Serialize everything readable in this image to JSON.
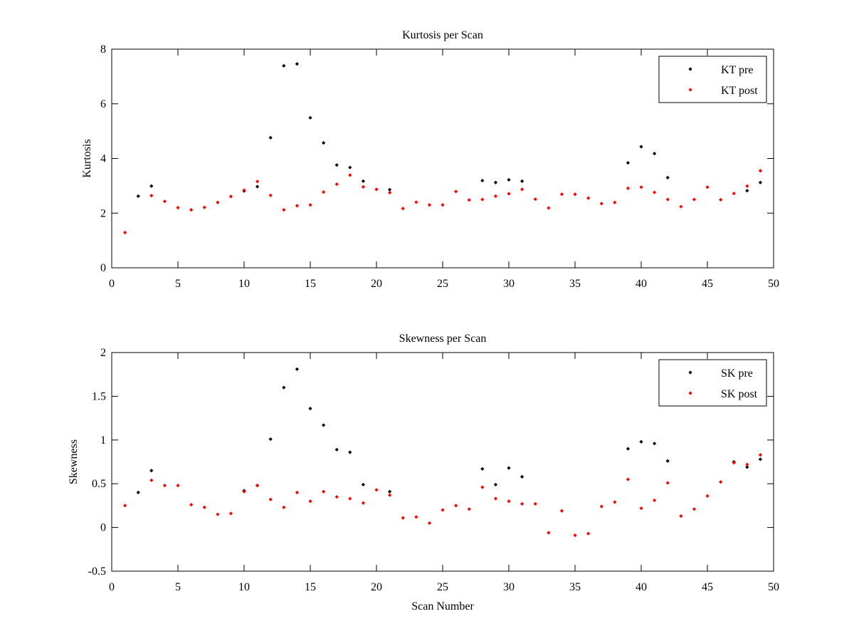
{
  "chart_data": [
    {
      "type": "scatter",
      "title": "Kurtosis per Scan",
      "xlabel": "",
      "ylabel": "Kurtosis",
      "xlim": [
        0,
        50
      ],
      "ylim": [
        0,
        8
      ],
      "xticks": [
        "0",
        "5",
        "10",
        "15",
        "20",
        "25",
        "30",
        "35",
        "40",
        "45",
        "50"
      ],
      "yticks": [
        "0",
        "2",
        "4",
        "6",
        "8"
      ],
      "grid": false,
      "legend_position": "top-right",
      "series": [
        {
          "name": "KT pre",
          "color": "#000000",
          "x": [
            2,
            3,
            10,
            11,
            12,
            13,
            14,
            15,
            16,
            17,
            18,
            19,
            21,
            28,
            29,
            30,
            31,
            39,
            40,
            41,
            42,
            48,
            49
          ],
          "y": [
            2.62,
            2.99,
            2.81,
            2.97,
            4.76,
            7.39,
            7.46,
            5.49,
            4.57,
            3.76,
            3.67,
            3.17,
            2.86,
            3.19,
            3.12,
            3.22,
            3.17,
            3.84,
            4.43,
            4.18,
            3.3,
            2.82,
            3.12
          ]
        },
        {
          "name": "KT post",
          "color": "#ff0000",
          "x": [
            1,
            3,
            4,
            5,
            6,
            7,
            8,
            9,
            10,
            11,
            12,
            13,
            14,
            15,
            16,
            17,
            18,
            19,
            20,
            21,
            22,
            23,
            24,
            25,
            26,
            27,
            28,
            29,
            30,
            31,
            32,
            33,
            34,
            35,
            36,
            37,
            38,
            39,
            40,
            41,
            42,
            43,
            44,
            45,
            46,
            47,
            48,
            49
          ],
          "y": [
            1.29,
            2.64,
            2.43,
            2.2,
            2.12,
            2.21,
            2.39,
            2.61,
            2.84,
            3.16,
            2.65,
            2.12,
            2.27,
            2.3,
            2.77,
            3.06,
            3.39,
            2.96,
            2.87,
            2.75,
            2.17,
            2.4,
            2.3,
            2.3,
            2.79,
            2.48,
            2.5,
            2.62,
            2.71,
            2.87,
            2.51,
            2.19,
            2.69,
            2.69,
            2.55,
            2.35,
            2.39,
            2.91,
            2.95,
            2.76,
            2.5,
            2.24,
            2.5,
            2.95,
            2.49,
            2.72,
            2.99,
            3.55
          ]
        }
      ]
    },
    {
      "type": "scatter",
      "title": "Skewness per Scan",
      "xlabel": "Scan Number",
      "ylabel": "Skewness",
      "xlim": [
        0,
        50
      ],
      "ylim": [
        -0.5,
        2
      ],
      "xticks": [
        "0",
        "5",
        "10",
        "15",
        "20",
        "25",
        "30",
        "35",
        "40",
        "45",
        "50"
      ],
      "yticks": [
        "-0.5",
        "0",
        "0.5",
        "1",
        "1.5",
        "2"
      ],
      "grid": false,
      "legend_position": "top-right",
      "series": [
        {
          "name": "SK pre",
          "color": "#000000",
          "x": [
            2,
            3,
            10,
            11,
            12,
            13,
            14,
            15,
            16,
            17,
            18,
            19,
            21,
            28,
            29,
            30,
            31,
            39,
            40,
            41,
            42,
            47,
            48,
            49
          ],
          "y": [
            0.4,
            0.65,
            0.42,
            0.48,
            1.01,
            1.6,
            1.81,
            1.36,
            1.17,
            0.89,
            0.86,
            0.49,
            0.41,
            0.67,
            0.49,
            0.68,
            0.58,
            0.9,
            0.98,
            0.96,
            0.76,
            0.75,
            0.69,
            0.78
          ]
        },
        {
          "name": "SK post",
          "color": "#ff0000",
          "x": [
            1,
            3,
            4,
            5,
            6,
            7,
            8,
            9,
            10,
            11,
            12,
            13,
            14,
            15,
            16,
            17,
            18,
            19,
            20,
            21,
            22,
            23,
            24,
            25,
            26,
            27,
            28,
            29,
            30,
            31,
            32,
            33,
            34,
            35,
            36,
            37,
            38,
            39,
            40,
            41,
            42,
            43,
            44,
            45,
            46,
            47,
            48,
            49
          ],
          "y": [
            0.25,
            0.54,
            0.48,
            0.48,
            0.26,
            0.23,
            0.15,
            0.16,
            0.41,
            0.48,
            0.32,
            0.23,
            0.4,
            0.3,
            0.41,
            0.35,
            0.33,
            0.28,
            0.43,
            0.37,
            0.11,
            0.12,
            0.05,
            0.2,
            0.25,
            0.21,
            0.46,
            0.33,
            0.3,
            0.27,
            0.27,
            -0.06,
            0.19,
            -0.09,
            -0.07,
            0.24,
            0.29,
            0.55,
            0.22,
            0.31,
            0.51,
            0.13,
            0.21,
            0.36,
            0.52,
            0.74,
            0.72,
            0.83
          ]
        }
      ]
    }
  ]
}
